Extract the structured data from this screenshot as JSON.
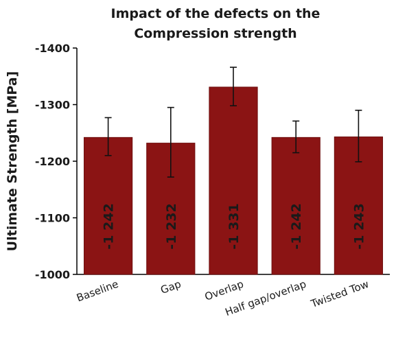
{
  "chart_data": {
    "type": "bar",
    "title_lines": [
      "Impact of the defects on the",
      "Compression strength"
    ],
    "ylabel": "Ultimate Strength [MPa]",
    "xlabel": "",
    "categories": [
      "Baseline",
      "Gap",
      "Overlap",
      "Half gap/overlap",
      "Twisted Tow"
    ],
    "values": [
      -1242,
      -1232,
      -1331,
      -1242,
      -1243
    ],
    "data_labels": [
      "-1 242",
      "-1 232",
      "-1 331",
      "-1 242",
      "-1 243"
    ],
    "error_high": [
      -1277,
      -1295,
      -1366,
      -1271,
      -1290
    ],
    "error_low": [
      -1210,
      -1172,
      -1298,
      -1215,
      -1199
    ],
    "yticks": [
      -1400,
      -1300,
      -1200,
      -1100,
      -1000
    ],
    "ylim": [
      -1000,
      -1400
    ],
    "axis_reversed": true,
    "grid": false,
    "legend": "none",
    "colors": {
      "bar": "#8b1414",
      "bar_edge": "#6e0e0e",
      "error_bar": "#111111",
      "axis": "#000000"
    }
  }
}
